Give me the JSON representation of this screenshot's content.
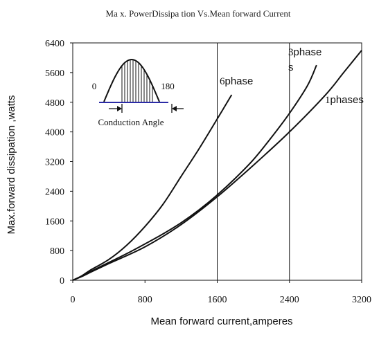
{
  "chart_data": {
    "type": "line",
    "title": "Ma x. PowerDissipa  tion Vs.Mean  forward Current",
    "xlabel": "Mean forward  current,amperes",
    "ylabel": "Max.forward dissipation ,watts",
    "xlim": [
      0,
      3200
    ],
    "ylim": [
      0,
      6400
    ],
    "x_ticks": [
      "0",
      "800",
      "1600",
      "2400",
      "3200"
    ],
    "y_ticks": [
      "0",
      "800",
      "1600",
      "2400",
      "3200",
      "4000",
      "4800",
      "5600",
      "6400"
    ],
    "grid": "x-only at 1600 and 2400",
    "series": [
      {
        "name": "6phase",
        "x": [
          0,
          100,
          200,
          400,
          600,
          800,
          1000,
          1200,
          1400,
          1600,
          1760
        ],
        "y": [
          0,
          120,
          280,
          560,
          950,
          1450,
          2050,
          2800,
          3550,
          4350,
          5000
        ]
      },
      {
        "name": "3phase s",
        "x": [
          0,
          100,
          200,
          400,
          600,
          800,
          1000,
          1200,
          1400,
          1600,
          1800,
          2000,
          2200,
          2400,
          2600,
          2700
        ],
        "y": [
          0,
          110,
          240,
          480,
          720,
          980,
          1250,
          1550,
          1900,
          2300,
          2750,
          3250,
          3850,
          4500,
          5250,
          5800
        ]
      },
      {
        "name": "1phases",
        "x": [
          0,
          100,
          200,
          400,
          800,
          1200,
          1600,
          2000,
          2400,
          2800,
          3000,
          3200
        ],
        "y": [
          0,
          100,
          220,
          450,
          900,
          1500,
          2250,
          3100,
          4000,
          5000,
          5600,
          6200
        ]
      }
    ],
    "inset": {
      "labels": [
        "0",
        "180"
      ],
      "caption": "Conduction Angle"
    }
  }
}
